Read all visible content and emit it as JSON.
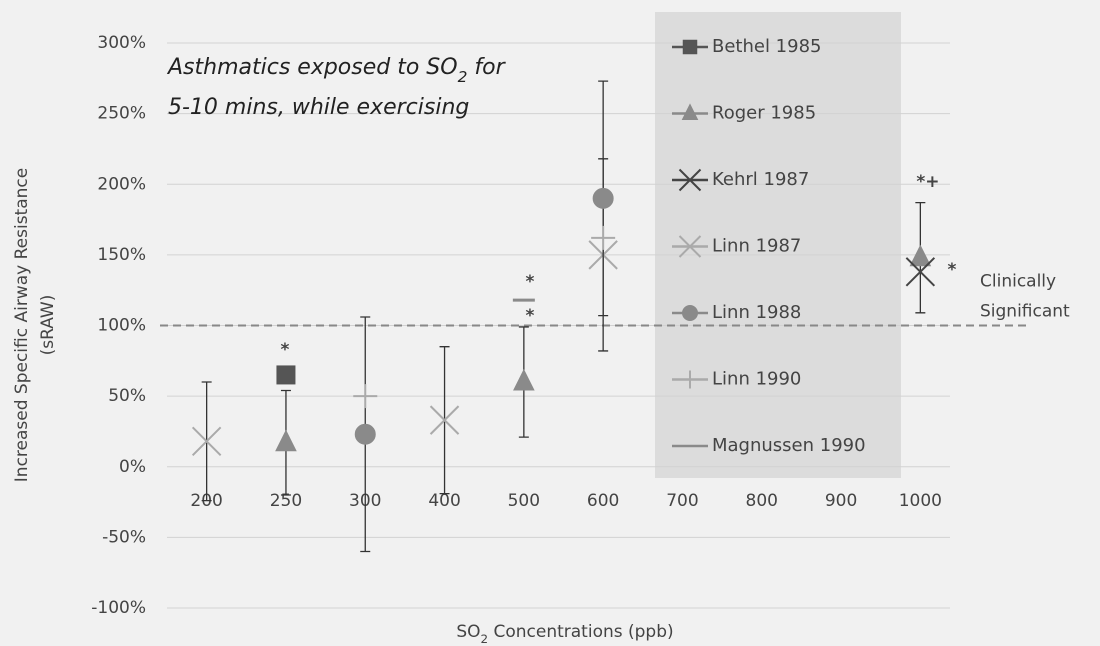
{
  "chart_data": {
    "type": "scatter",
    "title": [
      "Asthmatics exposed to SO",
      "2",
      " for",
      "5-10 mins, while exercising"
    ],
    "x_label": [
      "SO",
      "2",
      " Concentrations (ppb)"
    ],
    "y_label": [
      "Increased  Specific Airway Resistance",
      "(sRAW)"
    ],
    "categories": [
      "200",
      "250",
      "300",
      "400",
      "500",
      "600",
      "700",
      "800",
      "900",
      "1000"
    ],
    "ylim": [
      -100,
      300
    ],
    "yticks": [
      {
        "value": -100,
        "label": "-100%"
      },
      {
        "value": -50,
        "label": "-50%"
      },
      {
        "value": 0,
        "label": "0%"
      },
      {
        "value": 50,
        "label": "50%"
      },
      {
        "value": 100,
        "label": "100%"
      },
      {
        "value": 150,
        "label": "150%"
      },
      {
        "value": 200,
        "label": "200%"
      },
      {
        "value": 250,
        "label": "250%"
      },
      {
        "value": 300,
        "label": "300%"
      }
    ],
    "grid": true,
    "series": [
      {
        "name": "Bethel 1985",
        "color": "#555555",
        "marker": "square",
        "values": [
          null,
          65,
          null,
          null,
          null,
          null,
          null,
          null,
          null,
          null
        ],
        "errors": [
          null,
          null,
          null,
          null,
          null,
          null,
          null,
          null,
          null,
          null
        ]
      },
      {
        "name": "Roger 1985",
        "color": "#8a8a8a",
        "marker": "triangle",
        "values": [
          null,
          17,
          null,
          null,
          60,
          null,
          null,
          null,
          null,
          148
        ],
        "errors": [
          null,
          37,
          null,
          null,
          39,
          null,
          null,
          null,
          null,
          39
        ]
      },
      {
        "name": "Kehrl 1987",
        "color": "#444444",
        "marker": "x",
        "values": [
          null,
          null,
          null,
          null,
          null,
          null,
          null,
          null,
          null,
          138
        ],
        "errors": [
          null,
          null,
          null,
          null,
          null,
          null,
          null,
          null,
          null,
          null
        ]
      },
      {
        "name": "Linn 1987",
        "color": "#aaaaaa",
        "marker": "x",
        "values": [
          18,
          null,
          null,
          33,
          null,
          150,
          null,
          null,
          null,
          null
        ],
        "errors": [
          42,
          null,
          null,
          52,
          null,
          68,
          null,
          null,
          null,
          null
        ]
      },
      {
        "name": "Linn 1988",
        "color": "#8a8a8a",
        "marker": "circle",
        "values": [
          null,
          null,
          23,
          null,
          null,
          190,
          null,
          null,
          null,
          null
        ],
        "errors": [
          null,
          null,
          83,
          null,
          null,
          83,
          null,
          null,
          null,
          null
        ]
      },
      {
        "name": "Linn 1990",
        "color": "#aaaaaa",
        "marker": "plus",
        "values": [
          null,
          null,
          50,
          null,
          null,
          162,
          null,
          null,
          null,
          null
        ],
        "errors": [
          null,
          null,
          null,
          null,
          null,
          null,
          null,
          null,
          null,
          null
        ]
      },
      {
        "name": "Magnussen 1990",
        "color": "#8a8a8a",
        "marker": "dash",
        "values": [
          null,
          null,
          null,
          null,
          118,
          null,
          null,
          null,
          null,
          null
        ],
        "errors": [
          null,
          null,
          null,
          null,
          null,
          null,
          null,
          null,
          null,
          null
        ]
      }
    ],
    "reference_line": {
      "value": 100,
      "label": [
        "Clinically",
        "Significant"
      ]
    },
    "annotations": [
      "*",
      "*",
      "*",
      "*+",
      "*"
    ]
  }
}
